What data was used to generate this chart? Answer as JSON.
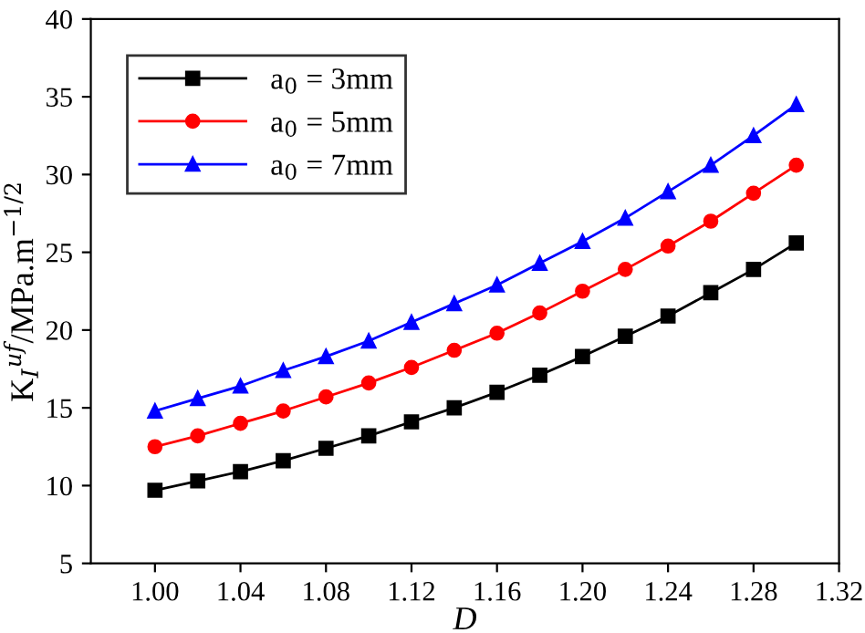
{
  "chart_data": {
    "type": "line",
    "xlabel": "D",
    "ylabel": "K$_{I}$$^{uf}$/MPa.m$^{−1/2}$",
    "x": [
      1.0,
      1.02,
      1.04,
      1.06,
      1.08,
      1.1,
      1.12,
      1.14,
      1.16,
      1.18,
      1.2,
      1.22,
      1.24,
      1.26,
      1.28,
      1.3
    ],
    "series": [
      {
        "name": "a$_{0}$ = 3mm",
        "color": "#000000",
        "marker": "square",
        "values": [
          9.7,
          10.3,
          10.9,
          11.6,
          12.4,
          13.2,
          14.1,
          15.0,
          16.0,
          17.1,
          18.3,
          19.6,
          20.9,
          22.4,
          23.9,
          25.6
        ]
      },
      {
        "name": "a$_{0}$ = 5mm",
        "color": "#ff0000",
        "marker": "circle",
        "values": [
          12.5,
          13.2,
          14.0,
          14.8,
          15.7,
          16.6,
          17.6,
          18.7,
          19.8,
          21.1,
          22.5,
          23.9,
          25.4,
          27.0,
          28.8,
          30.6
        ]
      },
      {
        "name": "a$_{0}$ = 7mm",
        "color": "#0000ff",
        "marker": "triangle",
        "values": [
          14.8,
          15.6,
          16.4,
          17.4,
          18.3,
          19.3,
          20.5,
          21.7,
          22.9,
          24.3,
          25.7,
          27.2,
          28.9,
          30.6,
          32.5,
          34.5
        ]
      }
    ],
    "xlim": [
      0.97,
      1.32
    ],
    "xticks": [
      {
        "value": 1.0,
        "label": "1.00"
      },
      1.04,
      1.08,
      1.12,
      1.16,
      {
        "value": 1.2,
        "label": "1.20"
      },
      1.24,
      1.28,
      1.32
    ],
    "ylim": [
      5,
      40
    ],
    "yticks": [
      5,
      10,
      15,
      20,
      25,
      30,
      35,
      40
    ],
    "grid": false,
    "legend": "top left",
    "line_style": "solid"
  }
}
